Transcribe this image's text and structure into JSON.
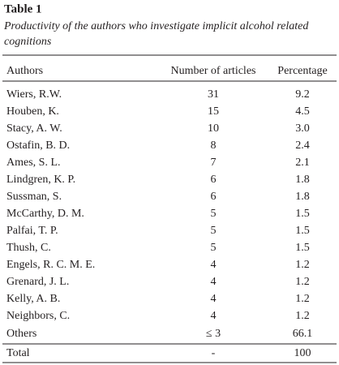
{
  "title": "Table 1",
  "caption": [
    "Productivity of the authors who investigate implicit alcohol related",
    "cognitions"
  ],
  "table": {
    "header": [
      "Authors",
      "Number of articles",
      "Percentage"
    ],
    "rows": [
      [
        "Wiers, R.W.",
        "31",
        "9.2"
      ],
      [
        "Houben, K.",
        "15",
        "4.5"
      ],
      [
        "Stacy, A. W.",
        "10",
        "3.0"
      ],
      [
        "Ostafin, B. D.",
        "8",
        "2.4"
      ],
      [
        "Ames, S. L.",
        "7",
        "2.1"
      ],
      [
        "Lindgren, K. P.",
        "6",
        "1.8"
      ],
      [
        "Sussman, S.",
        "6",
        "1.8"
      ],
      [
        "McCarthy, D. M.",
        "5",
        "1.5"
      ],
      [
        "Palfai, T. P.",
        "5",
        "1.5"
      ],
      [
        "Thush, C.",
        "5",
        "1.5"
      ],
      [
        "Engels, R. C. M. E.",
        "4",
        "1.2"
      ],
      [
        "Grenard, J. L.",
        "4",
        "1.2"
      ],
      [
        "Kelly, A. B.",
        "4",
        "1.2"
      ],
      [
        "Neighbors, C.",
        "4",
        "1.2"
      ],
      [
        "Others",
        "≤ 3",
        "66.1"
      ],
      [
        "Total",
        "-",
        "100"
      ]
    ]
  }
}
